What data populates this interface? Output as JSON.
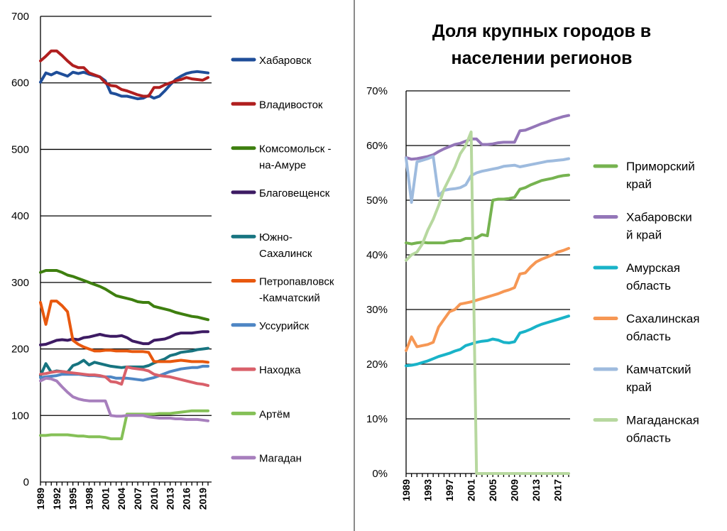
{
  "chart_data": [
    {
      "type": "line",
      "title": "",
      "xlabel": "",
      "ylabel": "",
      "ylim": [
        0,
        700
      ],
      "yticks": [
        "0",
        "100",
        "200",
        "300",
        "400",
        "500",
        "600",
        "700"
      ],
      "xticks": [
        "1989",
        "1992",
        "1995",
        "1998",
        "2001",
        "2004",
        "2007",
        "2010",
        "2013",
        "2016",
        "2019"
      ],
      "x": [
        1989,
        1990,
        1991,
        1992,
        1993,
        1994,
        1995,
        1996,
        1997,
        1998,
        1999,
        2000,
        2001,
        2002,
        2003,
        2004,
        2005,
        2006,
        2007,
        2008,
        2009,
        2010,
        2011,
        2012,
        2013,
        2014,
        2015,
        2016,
        2017,
        2018,
        2019,
        2020
      ],
      "series": [
        {
          "name": "Хабаровск",
          "legend": [
            "Хабаровск"
          ],
          "color": "#1f4e99",
          "values": [
            601,
            615,
            612,
            616,
            613,
            610,
            616,
            614,
            616,
            613,
            611,
            609,
            603,
            585,
            583,
            580,
            580,
            578,
            576,
            577,
            581,
            577,
            580,
            588,
            597,
            605,
            610,
            614,
            616,
            617,
            616,
            615
          ]
        },
        {
          "name": "Владивосток",
          "legend": [
            "Владивосток"
          ],
          "color": "#b01f1f",
          "values": [
            633,
            640,
            648,
            648,
            641,
            633,
            626,
            623,
            623,
            615,
            612,
            609,
            600,
            596,
            595,
            590,
            588,
            585,
            582,
            580,
            580,
            593,
            593,
            597,
            600,
            603,
            605,
            608,
            606,
            605,
            604,
            608
          ]
        },
        {
          "name": "Комсомольск-на-Амуре",
          "legend": [
            "Комсомольск -",
            "на-Амуре"
          ],
          "color": "#3e7f0f",
          "values": [
            315,
            318,
            318,
            318,
            315,
            311,
            309,
            306,
            303,
            300,
            297,
            294,
            290,
            285,
            280,
            278,
            276,
            274,
            271,
            270,
            270,
            264,
            262,
            260,
            258,
            255,
            253,
            251,
            249,
            248,
            246,
            244
          ]
        },
        {
          "name": "Благовещенск",
          "legend": [
            "Благовещенск"
          ],
          "color": "#3d1b63",
          "values": [
            206,
            207,
            210,
            213,
            214,
            213,
            215,
            214,
            217,
            218,
            220,
            222,
            220,
            219,
            219,
            220,
            217,
            212,
            210,
            208,
            208,
            213,
            214,
            215,
            218,
            222,
            224,
            224,
            224,
            225,
            226,
            226
          ]
        },
        {
          "name": "Южно-Сахалинск",
          "legend": [
            "Южно-",
            "Сахалинск"
          ],
          "color": "#177480",
          "values": [
            160,
            178,
            165,
            167,
            166,
            165,
            175,
            178,
            183,
            176,
            180,
            178,
            176,
            174,
            173,
            172,
            173,
            173,
            173,
            173,
            175,
            179,
            182,
            185,
            190,
            192,
            195,
            196,
            197,
            199,
            200,
            201
          ]
        },
        {
          "name": "Петропавловск-Камчатский",
          "legend": [
            "Петропавловск",
            "-Камчатский"
          ],
          "color": "#e8580e",
          "values": [
            270,
            237,
            272,
            272,
            265,
            256,
            213,
            207,
            203,
            200,
            197,
            197,
            198,
            198,
            197,
            197,
            197,
            196,
            196,
            196,
            195,
            181,
            181,
            181,
            181,
            182,
            183,
            182,
            181,
            181,
            181,
            180
          ]
        },
        {
          "name": "Уссурийск",
          "legend": [
            "Уссурийск"
          ],
          "color": "#4e86c4",
          "values": [
            157,
            158,
            159,
            160,
            162,
            162,
            162,
            162,
            161,
            160,
            160,
            159,
            158,
            158,
            156,
            156,
            156,
            155,
            154,
            153,
            155,
            157,
            160,
            163,
            166,
            168,
            170,
            171,
            172,
            172,
            174,
            174
          ]
        },
        {
          "name": "Находка",
          "legend": [
            "Находка"
          ],
          "color": "#d9606a",
          "values": [
            162,
            163,
            165,
            166,
            166,
            165,
            164,
            163,
            162,
            161,
            161,
            160,
            158,
            151,
            150,
            147,
            173,
            171,
            170,
            169,
            167,
            162,
            160,
            159,
            158,
            156,
            154,
            152,
            150,
            148,
            147,
            145
          ]
        },
        {
          "name": "Артём",
          "legend": [
            "Артём"
          ],
          "color": "#85c057",
          "values": [
            70,
            70,
            71,
            71,
            71,
            71,
            70,
            69,
            69,
            68,
            68,
            68,
            67,
            65,
            65,
            65,
            102,
            102,
            102,
            102,
            102,
            102,
            103,
            103,
            103,
            104,
            105,
            106,
            107,
            107,
            107,
            107
          ]
        },
        {
          "name": "Магадан",
          "legend": [
            "Магадан"
          ],
          "color": "#a77fbd",
          "values": [
            152,
            156,
            155,
            152,
            143,
            135,
            128,
            125,
            123,
            122,
            122,
            122,
            122,
            100,
            99,
            99,
            100,
            100,
            100,
            100,
            98,
            97,
            96,
            96,
            96,
            95,
            95,
            94,
            94,
            94,
            93,
            92
          ]
        }
      ]
    },
    {
      "type": "line",
      "title": "Доля крупных городов в населении регионов",
      "title_lines": [
        "Доля крупных городов в",
        "населении регионов"
      ],
      "xlabel": "",
      "ylabel": "",
      "ylim": [
        0,
        70
      ],
      "yticks": [
        "0%",
        "10%",
        "20%",
        "30%",
        "40%",
        "50%",
        "60%",
        "70%"
      ],
      "xticks": [
        "1989",
        "1993",
        "1997",
        "2001",
        "2005",
        "2009",
        "2013",
        "2017"
      ],
      "x": [
        1989,
        1990,
        1991,
        1992,
        1993,
        1994,
        1995,
        1996,
        1997,
        1998,
        1999,
        2000,
        2001,
        2002,
        2003,
        2004,
        2005,
        2006,
        2007,
        2008,
        2009,
        2010,
        2011,
        2012,
        2013,
        2014,
        2015,
        2016,
        2017,
        2018,
        2019
      ],
      "series": [
        {
          "name": "Приморский край",
          "legend": [
            "Приморский",
            "край"
          ],
          "color": "#76b350",
          "values": [
            42.2,
            42.0,
            42.2,
            42.3,
            42.2,
            42.2,
            42.2,
            42.2,
            42.5,
            42.6,
            42.6,
            43.0,
            43.0,
            43.1,
            43.7,
            43.5,
            50.0,
            50.2,
            50.2,
            50.3,
            50.5,
            52.0,
            52.3,
            52.8,
            53.2,
            53.6,
            53.8,
            54.0,
            54.3,
            54.5,
            54.6
          ]
        },
        {
          "name": "Хабаровский край",
          "legend": [
            "Хабаровски",
            "й край"
          ],
          "color": "#9476b8",
          "values": [
            57.8,
            57.5,
            57.6,
            57.8,
            58.0,
            58.3,
            58.9,
            59.4,
            59.8,
            60.2,
            60.4,
            60.8,
            61.2,
            61.2,
            60.2,
            60.2,
            60.3,
            60.5,
            60.6,
            60.6,
            60.6,
            62.7,
            62.8,
            63.2,
            63.6,
            64.0,
            64.3,
            64.7,
            65.0,
            65.3,
            65.5
          ]
        },
        {
          "name": "Амурская область",
          "legend": [
            "Амурская",
            "область"
          ],
          "color": "#19b3c8",
          "values": [
            19.7,
            19.8,
            20.0,
            20.3,
            20.6,
            21.0,
            21.4,
            21.7,
            22.0,
            22.4,
            22.7,
            23.4,
            23.7,
            24.0,
            24.2,
            24.3,
            24.6,
            24.4,
            24.0,
            23.9,
            24.1,
            25.7,
            26.0,
            26.4,
            26.9,
            27.3,
            27.6,
            27.9,
            28.2,
            28.5,
            28.8
          ]
        },
        {
          "name": "Сахалинская область",
          "legend": [
            "Сахалинская",
            "область"
          ],
          "color": "#f69754",
          "values": [
            22.5,
            25.0,
            23.2,
            23.4,
            23.6,
            24.0,
            26.8,
            28.2,
            29.6,
            30.0,
            31.0,
            31.2,
            31.4,
            31.7,
            32.0,
            32.3,
            32.6,
            32.9,
            33.3,
            33.6,
            34.0,
            36.5,
            36.7,
            37.8,
            38.7,
            39.2,
            39.6,
            40.0,
            40.5,
            40.8,
            41.2
          ]
        },
        {
          "name": "Камчатский край",
          "legend": [
            "Камчатский",
            "край"
          ],
          "color": "#9ebbde",
          "values": [
            57.7,
            49.6,
            57.0,
            57.3,
            57.6,
            58.0,
            50.8,
            51.8,
            52.0,
            52.1,
            52.3,
            52.8,
            54.5,
            55.0,
            55.3,
            55.5,
            55.7,
            55.9,
            56.2,
            56.3,
            56.4,
            56.1,
            56.3,
            56.5,
            56.7,
            56.9,
            57.1,
            57.2,
            57.3,
            57.4,
            57.6
          ]
        },
        {
          "name": "Магаданская область",
          "legend": [
            "Магаданская",
            "область"
          ],
          "color": "#b7d89f",
          "values": [
            39.0,
            40.0,
            40.5,
            42.0,
            44.5,
            46.5,
            49.0,
            52.0,
            54.0,
            56.0,
            58.5,
            60.0,
            62.5,
            0,
            0,
            0,
            0,
            0,
            0,
            0,
            0,
            0,
            0,
            0,
            0,
            0,
            0,
            0,
            0,
            0,
            0
          ]
        }
      ]
    }
  ]
}
